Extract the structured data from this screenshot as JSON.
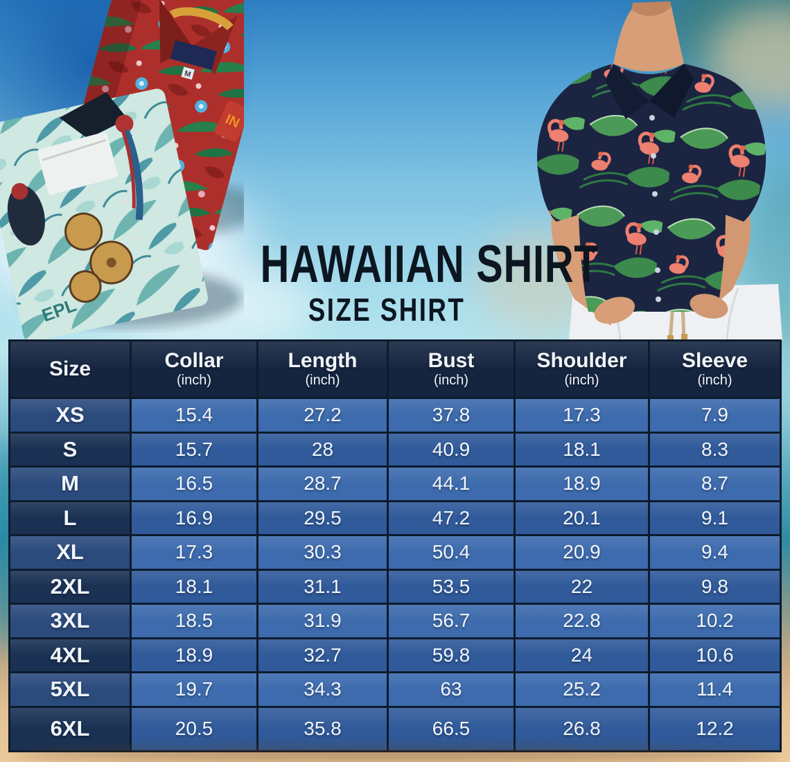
{
  "header": {
    "title": "HAWAIIAN SHIRT",
    "subtitle": "SIZE SHIRT"
  },
  "photo": {
    "red_shirt_tag_text": "M",
    "red_shirt_logo_text": "IN",
    "teal_shirt_print_text": "EPL"
  },
  "chart_data": {
    "type": "table",
    "title": "HAWAIIAN SHIRT SIZE SHIRT",
    "columns": [
      {
        "label": "Size",
        "unit": ""
      },
      {
        "label": "Collar",
        "unit": "(inch)"
      },
      {
        "label": "Length",
        "unit": "(inch)"
      },
      {
        "label": "Bust",
        "unit": "(inch)"
      },
      {
        "label": "Shoulder",
        "unit": "(inch)"
      },
      {
        "label": "Sleeve",
        "unit": "(inch)"
      }
    ],
    "rows": [
      {
        "size": "XS",
        "values": [
          "15.4",
          "27.2",
          "37.8",
          "17.3",
          "7.9"
        ]
      },
      {
        "size": "S",
        "values": [
          "15.7",
          "28",
          "40.9",
          "18.1",
          "8.3"
        ]
      },
      {
        "size": "M",
        "values": [
          "16.5",
          "28.7",
          "44.1",
          "18.9",
          "8.7"
        ]
      },
      {
        "size": "L",
        "values": [
          "16.9",
          "29.5",
          "47.2",
          "20.1",
          "9.1"
        ]
      },
      {
        "size": "XL",
        "values": [
          "17.3",
          "30.3",
          "50.4",
          "20.9",
          "9.4"
        ]
      },
      {
        "size": "2XL",
        "values": [
          "18.1",
          "31.1",
          "53.5",
          "22",
          "9.8"
        ]
      },
      {
        "size": "3XL",
        "values": [
          "18.5",
          "31.9",
          "56.7",
          "22.8",
          "10.2"
        ]
      },
      {
        "size": "4XL",
        "values": [
          "18.9",
          "32.7",
          "59.8",
          "24",
          "10.6"
        ]
      },
      {
        "size": "5XL",
        "values": [
          "19.7",
          "34.3",
          "63",
          "25.2",
          "11.4"
        ]
      },
      {
        "size": "6XL",
        "values": [
          "20.5",
          "35.8",
          "66.5",
          "26.8",
          "12.2"
        ]
      }
    ]
  },
  "colors": {
    "header_bg": "#152540",
    "row_value_light": "#3d6bad",
    "row_value_dark": "#305a9a",
    "row_size_light": "#2b4b7d",
    "row_size_dark": "#1a3153",
    "grid": "#0d1b2d",
    "cell_text": "#f1f5fa",
    "title": "#0c1620",
    "sand": "#e5c193",
    "sky": "#58abd8",
    "shirt_navy": "#1b2441",
    "leaf_green": "#4c9a57",
    "flamingo_pink": "#ee8070",
    "red_shirt": "#ad2f2b",
    "teal_shirt": "#cfe8e2"
  }
}
